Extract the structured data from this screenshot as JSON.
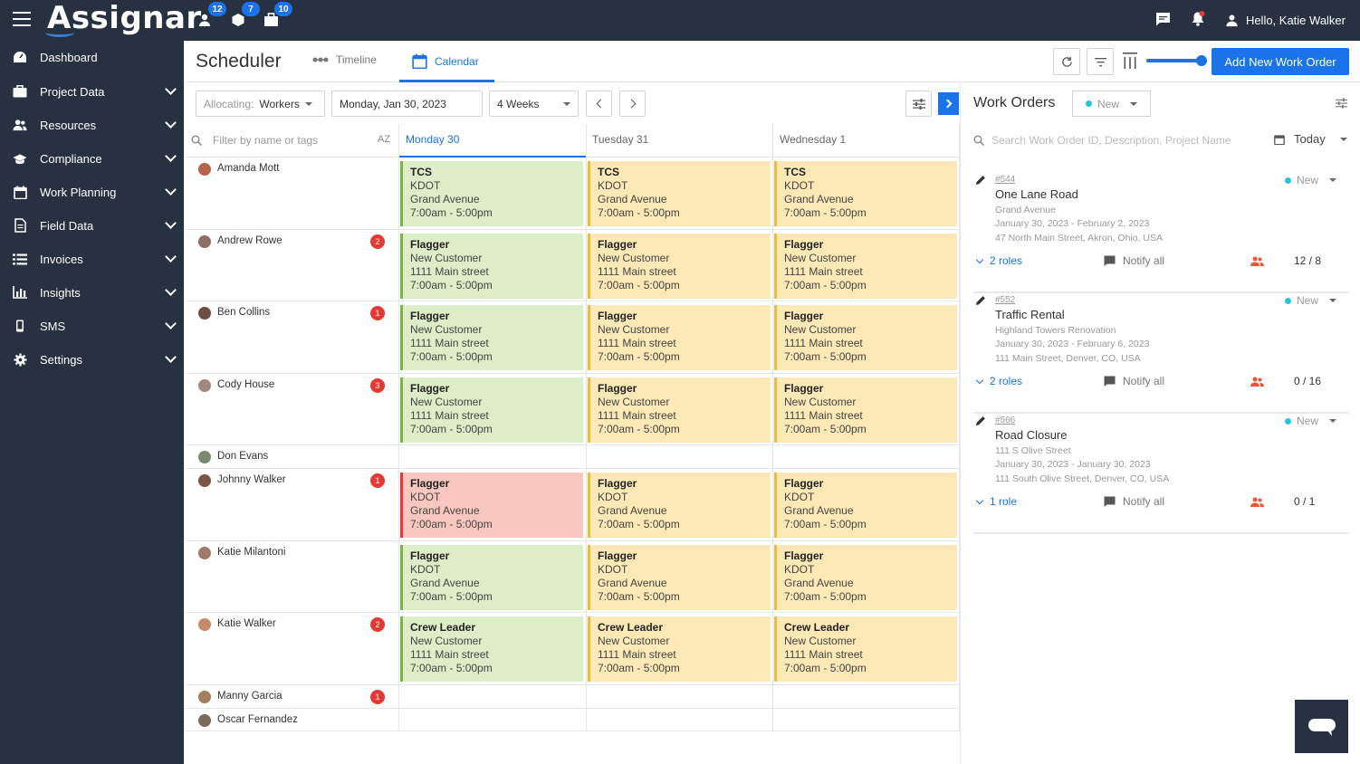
{
  "app": {
    "logo": "Assignar"
  },
  "topbar": {
    "badges": [
      {
        "icon": "person-icon",
        "count": "12"
      },
      {
        "icon": "cube-icon",
        "count": "7"
      },
      {
        "icon": "briefcase-icon",
        "count": "10"
      }
    ],
    "greeting": "Hello, Katie Walker"
  },
  "sidebar": {
    "items": [
      {
        "label": "Dashboard",
        "icon": "dashboard-icon"
      },
      {
        "label": "Project Data",
        "icon": "briefcase-icon"
      },
      {
        "label": "Resources",
        "icon": "users-icon"
      },
      {
        "label": "Compliance",
        "icon": "graduation-cap-icon"
      },
      {
        "label": "Work Planning",
        "icon": "calendar-icon"
      },
      {
        "label": "Field Data",
        "icon": "document-icon"
      },
      {
        "label": "Invoices",
        "icon": "list-icon"
      },
      {
        "label": "Insights",
        "icon": "bar-chart-icon"
      },
      {
        "label": "SMS",
        "icon": "mobile-icon"
      },
      {
        "label": "Settings",
        "icon": "gear-icon"
      }
    ]
  },
  "header": {
    "title": "Scheduler",
    "tabs": [
      {
        "label": "Timeline"
      },
      {
        "label": "Calendar"
      }
    ],
    "add_button": "Add New Work Order"
  },
  "toolbar": {
    "allocating_label": "Allocating:",
    "allocating_value": "Workers",
    "date": "Monday, Jan 30, 2023",
    "range": "4 Weeks"
  },
  "calendar": {
    "filter_placeholder": "Filter by name or tags",
    "sort_label": "AZ",
    "days": [
      "Monday 30",
      "Tuesday 31",
      "Wednesday 1"
    ],
    "workers": [
      {
        "name": "Amanda Mott",
        "badge": "",
        "shifts": [
          {
            "role": "TCS",
            "customer": "KDOT",
            "address": "Grand Avenue",
            "time": "7:00am - 5:00pm",
            "color": "green"
          },
          {
            "role": "TCS",
            "customer": "KDOT",
            "address": "Grand Avenue",
            "time": "7:00am - 5:00pm",
            "color": "yellow"
          },
          {
            "role": "TCS",
            "customer": "KDOT",
            "address": "Grand Avenue",
            "time": "7:00am - 5:00pm",
            "color": "yellow"
          }
        ]
      },
      {
        "name": "Andrew Rowe",
        "badge": "2",
        "shifts": [
          {
            "role": "Flagger",
            "customer": "New Customer",
            "address": "1111 Main street",
            "time": "7:00am - 5:00pm",
            "color": "green"
          },
          {
            "role": "Flagger",
            "customer": "New Customer",
            "address": "1111 Main street",
            "time": "7:00am - 5:00pm",
            "color": "yellow"
          },
          {
            "role": "Flagger",
            "customer": "New Customer",
            "address": "1111 Main street",
            "time": "7:00am - 5:00pm",
            "color": "yellow"
          }
        ]
      },
      {
        "name": "Ben Collins",
        "badge": "1",
        "shifts": [
          {
            "role": "Flagger",
            "customer": "New Customer",
            "address": "1111 Main street",
            "time": "7:00am - 5:00pm",
            "color": "green"
          },
          {
            "role": "Flagger",
            "customer": "New Customer",
            "address": "1111 Main street",
            "time": "7:00am - 5:00pm",
            "color": "yellow"
          },
          {
            "role": "Flagger",
            "customer": "New Customer",
            "address": "1111 Main street",
            "time": "7:00am - 5:00pm",
            "color": "yellow"
          }
        ]
      },
      {
        "name": "Cody House",
        "badge": "3",
        "shifts": [
          {
            "role": "Flagger",
            "customer": "New Customer",
            "address": "1111 Main street",
            "time": "7:00am - 5:00pm",
            "color": "green"
          },
          {
            "role": "Flagger",
            "customer": "New Customer",
            "address": "1111 Main street",
            "time": "7:00am - 5:00pm",
            "color": "yellow"
          },
          {
            "role": "Flagger",
            "customer": "New Customer",
            "address": "1111 Main street",
            "time": "7:00am - 5:00pm",
            "color": "yellow"
          }
        ]
      },
      {
        "name": "Don Evans",
        "badge": "",
        "shifts": []
      },
      {
        "name": "Johnny Walker",
        "badge": "1",
        "shifts": [
          {
            "role": "Flagger",
            "customer": "KDOT",
            "address": "Grand Avenue",
            "time": "7:00am - 5:00pm",
            "color": "red"
          },
          {
            "role": "Flagger",
            "customer": "KDOT",
            "address": "Grand Avenue",
            "time": "7:00am - 5:00pm",
            "color": "yellow"
          },
          {
            "role": "Flagger",
            "customer": "KDOT",
            "address": "Grand Avenue",
            "time": "7:00am - 5:00pm",
            "color": "yellow"
          }
        ]
      },
      {
        "name": "Katie Milantoni",
        "badge": "",
        "shifts": [
          {
            "role": "Flagger",
            "customer": "KDOT",
            "address": "Grand Avenue",
            "time": "7:00am - 5:00pm",
            "color": "green"
          },
          {
            "role": "Flagger",
            "customer": "KDOT",
            "address": "Grand Avenue",
            "time": "7:00am - 5:00pm",
            "color": "yellow"
          },
          {
            "role": "Flagger",
            "customer": "KDOT",
            "address": "Grand Avenue",
            "time": "7:00am - 5:00pm",
            "color": "yellow"
          }
        ]
      },
      {
        "name": "Katie Walker",
        "badge": "2",
        "shifts": [
          {
            "role": "Crew Leader",
            "customer": "New Customer",
            "address": "1111 Main street",
            "time": "7:00am - 5:00pm",
            "color": "green"
          },
          {
            "role": "Crew Leader",
            "customer": "New Customer",
            "address": "1111 Main street",
            "time": "7:00am - 5:00pm",
            "color": "yellow"
          },
          {
            "role": "Crew Leader",
            "customer": "New Customer",
            "address": "1111 Main street",
            "time": "7:00am - 5:00pm",
            "color": "yellow"
          }
        ]
      },
      {
        "name": "Manny Garcia",
        "badge": "1",
        "shifts": []
      },
      {
        "name": "Oscar Fernandez",
        "badge": "",
        "shifts": []
      }
    ]
  },
  "work_orders": {
    "title": "Work Orders",
    "status_filter": "New",
    "search_placeholder": "Search Work Order ID, Description, Project Name",
    "date_filter": "Today",
    "notify_label": "Notify all",
    "items": [
      {
        "id": "#544",
        "name": "One Lane Road",
        "project": "Grand Avenue",
        "dates": "January 30, 2023 - February 2, 2023",
        "address": "47 North Main Street, Akron, Ohio, USA",
        "status": "New",
        "roles": "2 roles",
        "count": "12  /  8"
      },
      {
        "id": "#552",
        "name": "Traffic Rental",
        "project": "Highland Towers Renovation",
        "dates": "January 30, 2023 - February 6, 2023",
        "address": "111 Main Street, Denver, CO, USA",
        "status": "New",
        "roles": "2 roles",
        "count": "0  /  16"
      },
      {
        "id": "#566",
        "name": "Road Closure",
        "project": "111 S Olive Street",
        "dates": "January 30, 2023 - January 30, 2023",
        "address": "111 South Olive Street, Denver, CO, USA",
        "status": "New",
        "roles": "1 role",
        "count": "0  /  1"
      }
    ]
  },
  "colors": {
    "sidebar_bg": "#283142",
    "accent": "#1a73e8",
    "assigned_green": "#dcedc8",
    "pending_yellow": "#fce9b6",
    "conflict_red": "#f9c7c0",
    "badge_red": "#e53935"
  }
}
